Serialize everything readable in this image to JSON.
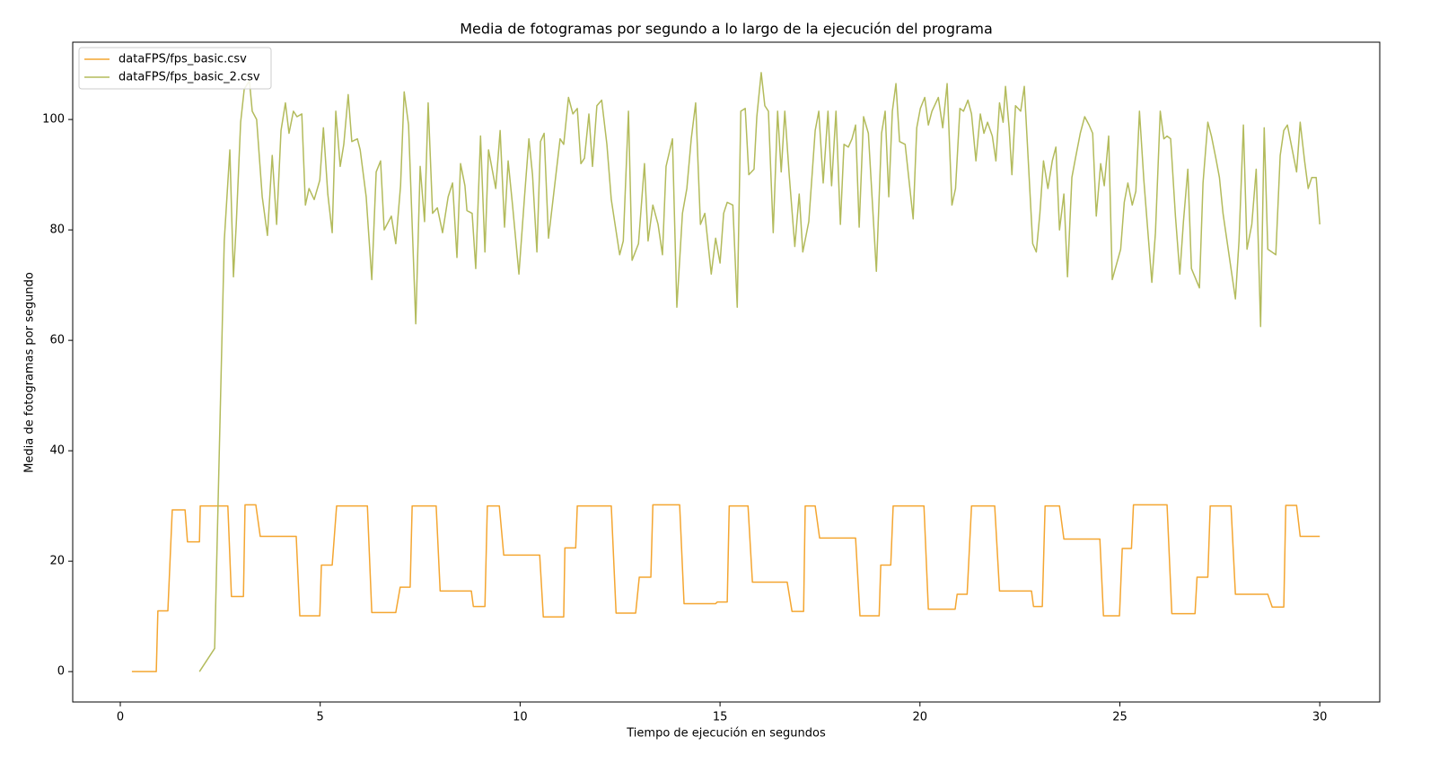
{
  "chart_data": {
    "type": "line",
    "title": "Media de fotogramas por segundo a lo largo de la ejecución del programa",
    "x_label": "Tiempo de ejecución en segundos",
    "y_label": "Media de fotogramas por segundo",
    "xlim": [
      -1.19,
      31.5
    ],
    "ylim": [
      -5.5,
      114
    ],
    "xticks": [
      0,
      5,
      10,
      15,
      20,
      25,
      30
    ],
    "yticks": [
      0,
      20,
      40,
      60,
      80,
      100
    ],
    "grid": false,
    "legend": "upper-left",
    "series": [
      {
        "name": "dataFPS/fps_basic.csv",
        "color": "#f4a631",
        "x": [
          0.29,
          0.9,
          0.94,
          1.19,
          1.3,
          1.62,
          1.68,
          1.98,
          2.0,
          2.69,
          2.78,
          3.08,
          3.12,
          3.39,
          3.5,
          4.4,
          4.49,
          4.99,
          5.03,
          5.3,
          5.41,
          6.18,
          6.29,
          6.89,
          7.0,
          7.25,
          7.3,
          7.9,
          8.0,
          8.78,
          8.83,
          9.12,
          9.18,
          9.48,
          9.59,
          10.49,
          10.58,
          11.09,
          11.12,
          11.39,
          11.43,
          12.28,
          12.4,
          12.89,
          12.98,
          13.27,
          13.32,
          13.99,
          14.1,
          14.89,
          14.93,
          15.18,
          15.23,
          15.7,
          15.81,
          16.68,
          16.8,
          17.09,
          17.13,
          17.38,
          17.49,
          18.39,
          18.5,
          18.98,
          19.02,
          19.27,
          19.33,
          20.1,
          20.21,
          20.88,
          20.93,
          21.18,
          21.29,
          21.87,
          21.99,
          22.79,
          22.84,
          23.06,
          23.13,
          23.49,
          23.6,
          24.5,
          24.59,
          24.99,
          25.06,
          25.29,
          25.34,
          26.18,
          26.3,
          26.88,
          26.93,
          27.2,
          27.26,
          27.78,
          27.89,
          28.7,
          28.81,
          29.1,
          29.15,
          29.42,
          29.51,
          30
        ],
        "values": [
          0,
          0,
          11,
          11,
          29.3,
          29.3,
          23.5,
          23.5,
          30,
          30,
          13.6,
          13.6,
          30.2,
          30.2,
          24.5,
          24.5,
          10.1,
          10.1,
          19.3,
          19.3,
          30,
          30,
          10.7,
          10.7,
          15.3,
          15.3,
          30,
          30,
          14.6,
          14.6,
          11.8,
          11.8,
          30,
          30,
          21.1,
          21.1,
          9.9,
          9.9,
          22.4,
          22.4,
          30,
          30,
          10.6,
          10.6,
          17.1,
          17.1,
          30.2,
          30.2,
          12.3,
          12.3,
          12.6,
          12.6,
          30,
          30,
          16.2,
          16.2,
          10.9,
          10.9,
          30,
          30,
          24.2,
          24.2,
          10.1,
          10.1,
          19.3,
          19.3,
          30,
          30,
          11.3,
          11.3,
          14,
          14,
          30,
          30,
          14.6,
          14.6,
          11.8,
          11.8,
          30,
          30,
          24,
          24,
          10.1,
          10.1,
          22.3,
          22.3,
          30.2,
          30.2,
          10.5,
          10.5,
          17.1,
          17.1,
          30,
          30,
          14,
          14,
          11.7,
          11.7,
          30.1,
          30.1,
          24.5,
          24.5
        ]
      },
      {
        "name": "dataFPS/fps_basic_2.csv",
        "color": "#b3bb5c",
        "x": [
          1.98,
          2.36,
          2.6,
          2.74,
          2.83,
          2.9,
          3.01,
          3.1,
          3.23,
          3.3,
          3.41,
          3.55,
          3.68,
          3.8,
          3.91,
          4.02,
          4.13,
          4.22,
          4.33,
          4.42,
          4.54,
          4.63,
          4.72,
          4.85,
          4.99,
          5.08,
          5.19,
          5.3,
          5.39,
          5.5,
          5.59,
          5.7,
          5.79,
          5.93,
          6.0,
          6.15,
          6.29,
          6.4,
          6.51,
          6.6,
          6.78,
          6.89,
          7.01,
          7.1,
          7.21,
          7.39,
          7.5,
          7.61,
          7.7,
          7.81,
          7.93,
          8.06,
          8.2,
          8.31,
          8.42,
          8.51,
          8.62,
          8.67,
          8.8,
          8.89,
          9.01,
          9.12,
          9.21,
          9.39,
          9.5,
          9.61,
          9.7,
          9.81,
          9.97,
          10.11,
          10.22,
          10.31,
          10.42,
          10.51,
          10.6,
          10.71,
          11.0,
          11.09,
          11.21,
          11.32,
          11.43,
          11.52,
          11.61,
          11.72,
          11.81,
          11.92,
          12.04,
          12.17,
          12.28,
          12.49,
          12.58,
          12.71,
          12.8,
          12.96,
          13.11,
          13.2,
          13.32,
          13.45,
          13.56,
          13.65,
          13.81,
          13.92,
          14.06,
          14.17,
          14.28,
          14.39,
          14.51,
          14.62,
          14.78,
          14.89,
          15.0,
          15.09,
          15.18,
          15.32,
          15.43,
          15.52,
          15.63,
          15.72,
          15.85,
          15.92,
          16.03,
          16.12,
          16.21,
          16.33,
          16.44,
          16.53,
          16.62,
          16.73,
          16.87,
          16.98,
          17.07,
          17.22,
          17.38,
          17.47,
          17.58,
          17.7,
          17.79,
          17.9,
          18.01,
          18.1,
          18.21,
          18.3,
          18.39,
          18.48,
          18.59,
          18.71,
          18.91,
          19.04,
          19.13,
          19.22,
          19.31,
          19.4,
          19.49,
          19.63,
          19.83,
          19.92,
          20.01,
          20.12,
          20.21,
          20.3,
          20.46,
          20.57,
          20.68,
          20.8,
          20.89,
          21.0,
          21.09,
          21.2,
          21.29,
          21.4,
          21.51,
          21.6,
          21.69,
          21.81,
          21.9,
          21.99,
          22.08,
          22.14,
          22.23,
          22.3,
          22.39,
          22.52,
          22.61,
          22.82,
          22.91,
          23.0,
          23.09,
          23.2,
          23.31,
          23.4,
          23.49,
          23.6,
          23.69,
          23.8,
          23.89,
          24.01,
          24.12,
          24.23,
          24.32,
          24.41,
          24.52,
          24.61,
          24.72,
          24.81,
          25.02,
          25.11,
          25.2,
          25.31,
          25.4,
          25.49,
          25.6,
          25.8,
          25.89,
          26.01,
          26.1,
          26.18,
          26.27,
          26.39,
          26.5,
          26.59,
          26.7,
          26.79,
          26.99,
          27.08,
          27.2,
          27.29,
          27.4,
          27.49,
          27.58,
          27.89,
          27.98,
          28.09,
          28.18,
          28.3,
          28.41,
          28.52,
          28.61,
          28.7,
          28.9,
          29.01,
          29.1,
          29.19,
          29.42,
          29.51,
          29.62,
          29.71,
          29.8,
          29.91,
          30
        ],
        "values": [
          0,
          4.2,
          78,
          94.5,
          71.5,
          81,
          99.5,
          105.5,
          107,
          101.5,
          100,
          86,
          79,
          93.5,
          81,
          98,
          103,
          97.5,
          101.5,
          100.5,
          101,
          84.5,
          87.5,
          85.5,
          89,
          98.5,
          86.5,
          79.5,
          101.5,
          91.5,
          95.5,
          104.5,
          96,
          96.5,
          94.5,
          86,
          71,
          90.5,
          92.5,
          80,
          82.5,
          77.5,
          88,
          105,
          99,
          63,
          91.5,
          81.5,
          103,
          83,
          84,
          79.5,
          86,
          88.5,
          75,
          92,
          88,
          83.5,
          83,
          73,
          97,
          76,
          94.5,
          87.5,
          98,
          80.5,
          92.5,
          84.5,
          72,
          86,
          96.5,
          90,
          76,
          96,
          97.5,
          78.5,
          96.5,
          95.5,
          104,
          101,
          102,
          92,
          93,
          101,
          91.5,
          102.5,
          103.5,
          95.5,
          85.5,
          75.5,
          78,
          101.5,
          74.5,
          77.5,
          92,
          78,
          84.5,
          81,
          75.5,
          91.5,
          96.5,
          66,
          83,
          87.5,
          96.5,
          103,
          81,
          83,
          72,
          78.5,
          74,
          83,
          85,
          84.5,
          66,
          101.5,
          102,
          90,
          91,
          100.5,
          108.5,
          102.5,
          101.5,
          79.5,
          101.5,
          90.5,
          101.5,
          90,
          77,
          86.5,
          76,
          81.5,
          98,
          101.5,
          88.5,
          101.5,
          88,
          101.5,
          81,
          95.5,
          95,
          96.5,
          99,
          80.5,
          100.5,
          97.5,
          72.5,
          97.5,
          101.5,
          86,
          101.5,
          106.5,
          96,
          95.5,
          82,
          98.5,
          102,
          104,
          99,
          101.5,
          104,
          98.5,
          106.5,
          84.5,
          87.5,
          102,
          101.5,
          103.5,
          101,
          92.5,
          101,
          97.5,
          99.5,
          97,
          92.5,
          103,
          99.5,
          106,
          98.5,
          90,
          102.5,
          101.5,
          106,
          77.5,
          76,
          83,
          92.5,
          87.5,
          92.5,
          95,
          80,
          86.5,
          71.5,
          89.5,
          93,
          97.5,
          100.5,
          99,
          97.5,
          82.5,
          92,
          88,
          97,
          71,
          76.5,
          85,
          88.5,
          84.5,
          87,
          101.5,
          89,
          70.5,
          79.5,
          101.5,
          96.5,
          97,
          96.5,
          82.5,
          72,
          81.5,
          91,
          73,
          69.5,
          88.5,
          99.5,
          97,
          93,
          89.5,
          83,
          67.5,
          78,
          99,
          76.5,
          81,
          91,
          62.5,
          98.5,
          76.5,
          75.5,
          93.5,
          98,
          99,
          90.5,
          99.5,
          92.5,
          87.5,
          89.5,
          89.5,
          81
        ]
      }
    ]
  }
}
